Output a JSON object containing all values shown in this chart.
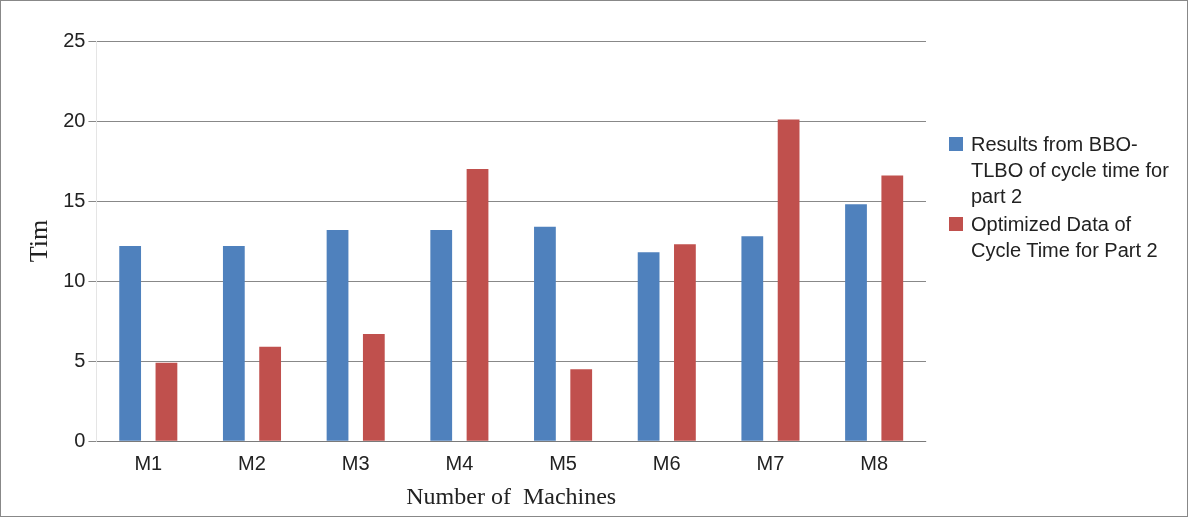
{
  "chart_data": {
    "type": "bar",
    "xlabel": "Number of  Machines",
    "ylabel": "Tim",
    "categories": [
      "M1",
      "M2",
      "M3",
      "M4",
      "M5",
      "M6",
      "M7",
      "M8"
    ],
    "series": [
      {
        "name": "Results from BBO-TLBO of cycle time for part 2",
        "color": "#4f81bd",
        "values": [
          12.2,
          12.2,
          13.2,
          13.2,
          13.4,
          11.8,
          12.8,
          14.8
        ]
      },
      {
        "name": "Optimized Data of Cycle Time for Part 2",
        "color": "#c0504d",
        "values": [
          4.9,
          5.9,
          6.7,
          17.0,
          4.5,
          12.3,
          20.1,
          16.6
        ]
      }
    ],
    "ylim": [
      0,
      25
    ],
    "yticks": [
      0,
      5,
      10,
      15,
      20,
      25
    ],
    "grid": "y",
    "legend": "right"
  }
}
